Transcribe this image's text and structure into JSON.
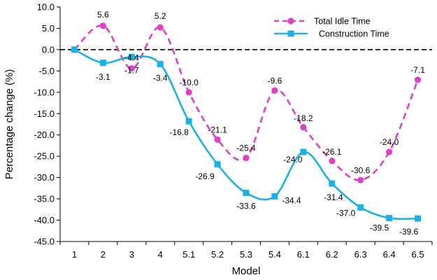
{
  "chart_data": {
    "type": "line",
    "title": "",
    "xlabel": "Model",
    "ylabel": "Percentage change (%)",
    "ylim": [
      -45,
      10
    ],
    "yticks": [
      10,
      5,
      0,
      -5,
      -10,
      -15,
      -20,
      -25,
      -30,
      -35,
      -40,
      -45
    ],
    "ytick_labels": [
      "10.0",
      "5.0",
      "0.0",
      "-5.0",
      "-10.0",
      "-15.0",
      "-20.0",
      "-25.0",
      "-30.0",
      "-35.0",
      "-40.0",
      "-45.0"
    ],
    "categories": [
      "1",
      "2",
      "3",
      "4",
      "5.1",
      "5.2",
      "5.3",
      "5.4",
      "6.1",
      "6.2",
      "6.3",
      "6.4",
      "6.5"
    ],
    "grid": false,
    "reference_line": 0,
    "legend_position": "top-right",
    "series": [
      {
        "name": "Total Idle Time",
        "color": "#e040c8",
        "line_style": "dashed",
        "marker": "circle",
        "values": [
          0,
          5.6,
          -4.4,
          5.2,
          -10.0,
          -21.1,
          -25.4,
          -9.6,
          -18.2,
          -26.1,
          -30.6,
          -24.0,
          -7.1
        ],
        "labels": [
          "",
          "5.6",
          "-4.4",
          "5.2",
          "-10.0",
          "-21.1",
          "-25.4",
          "-9.6",
          "-18.2",
          "-26.1",
          "-30.6",
          "-24.0",
          "-7.1"
        ]
      },
      {
        "name": "Construction Time",
        "color": "#1ab0e8",
        "line_style": "solid",
        "marker": "square",
        "values": [
          0,
          -3.1,
          -1.7,
          -3.4,
          -16.8,
          -26.9,
          -33.6,
          -34.4,
          -24.0,
          -31.4,
          -37.0,
          -39.5,
          -39.6
        ],
        "labels": [
          "",
          "-3.1",
          "-1.7",
          "-3.4",
          "-16.8",
          "-26.9",
          "-33.6",
          "-34.4",
          "-24.0",
          "-31.4",
          "-37.0",
          "-39.5",
          "-39.6"
        ]
      }
    ]
  }
}
